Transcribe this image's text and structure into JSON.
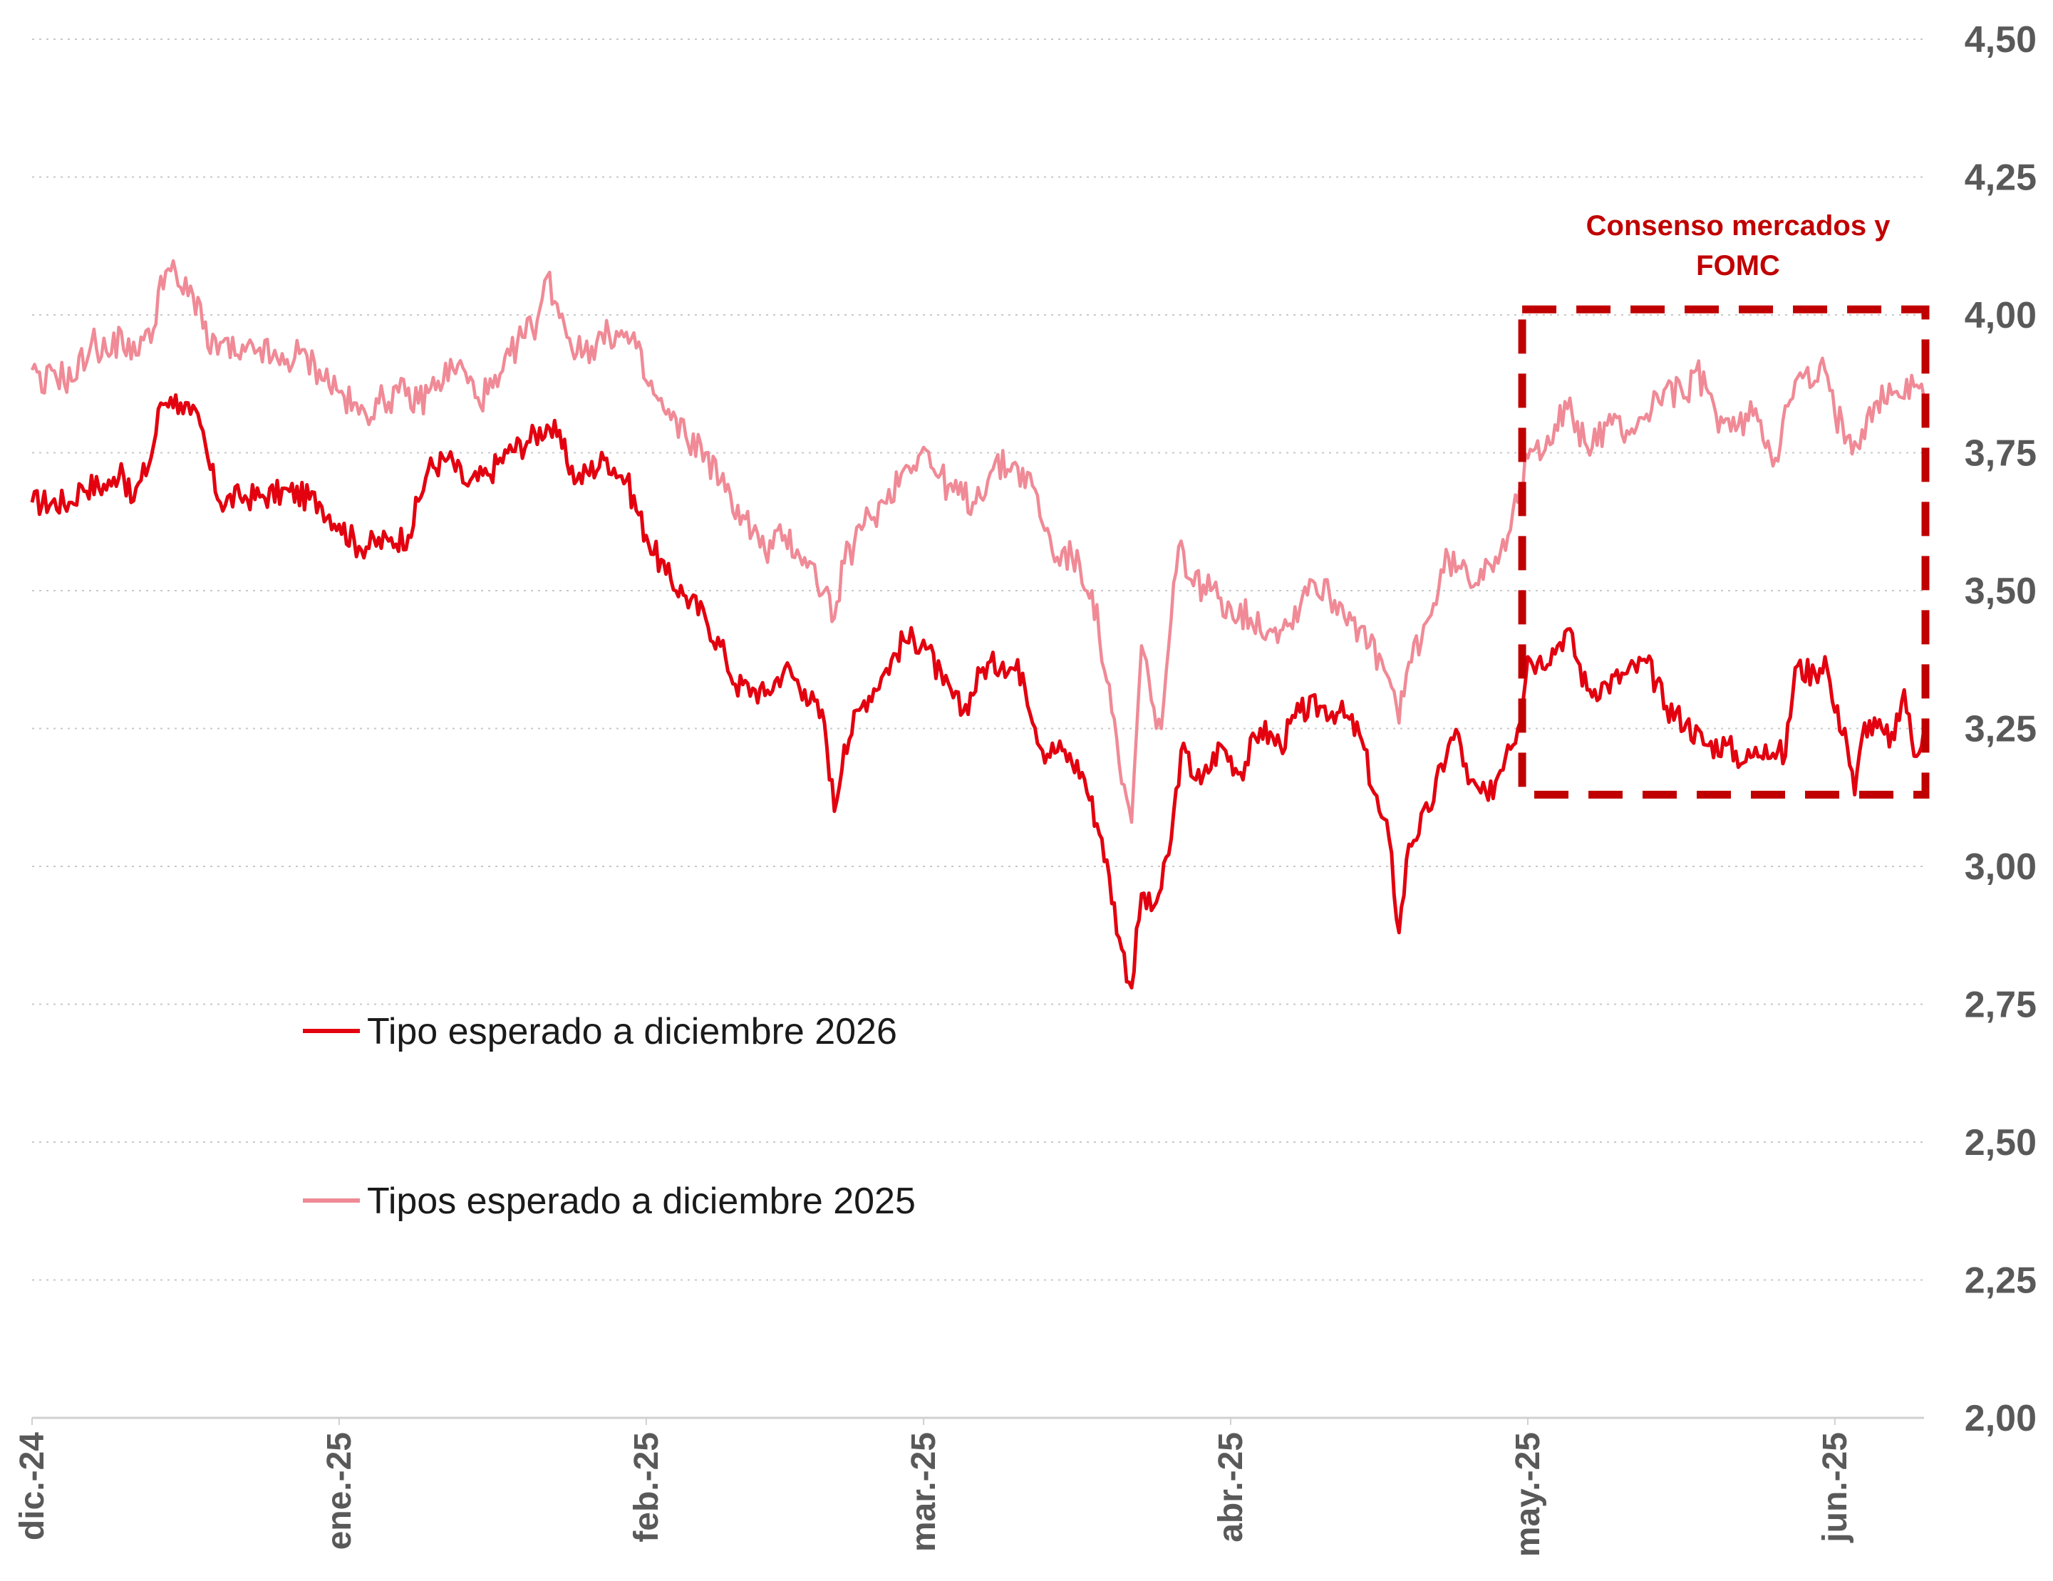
{
  "chart_data": {
    "type": "line",
    "title": "",
    "xlabel": "",
    "ylabel": "",
    "ylim": [
      2.0,
      4.5
    ],
    "yticks": [
      "2,00",
      "2,25",
      "2,50",
      "2,75",
      "3,00",
      "3,25",
      "3,50",
      "3,75",
      "4,00",
      "4,25",
      "4,50"
    ],
    "ytick_values": [
      2.0,
      2.25,
      2.5,
      2.75,
      3.0,
      3.25,
      3.5,
      3.75,
      4.0,
      4.25,
      4.5
    ],
    "y_axis_side": "right",
    "grid": "horizontal dotted",
    "xlim": [
      "2024-12-01",
      "2025-06-10"
    ],
    "xticks": [
      {
        "date": "2024-12-01",
        "label": "dic.-24"
      },
      {
        "date": "2025-01-01",
        "label": "ene.-25"
      },
      {
        "date": "2025-02-01",
        "label": "feb.-25"
      },
      {
        "date": "2025-03-01",
        "label": "mar.-25"
      },
      {
        "date": "2025-04-01",
        "label": "abr.-25"
      },
      {
        "date": "2025-05-01",
        "label": "may.-25"
      },
      {
        "date": "2025-06-01",
        "label": "jun.-25"
      }
    ],
    "legend_position": "lower-left",
    "series": [
      {
        "name": "Tipo esperado a diciembre 2026",
        "color": "#e3000f",
        "points": [
          [
            "2024-12-01",
            3.66
          ],
          [
            "2024-12-05",
            3.66
          ],
          [
            "2024-12-06",
            3.69
          ],
          [
            "2024-12-09",
            3.69
          ],
          [
            "2024-12-10",
            3.73
          ],
          [
            "2024-12-11",
            3.66
          ],
          [
            "2024-12-12",
            3.7
          ],
          [
            "2024-12-13",
            3.74
          ],
          [
            "2024-12-14",
            3.84
          ],
          [
            "2024-12-15",
            3.85
          ],
          [
            "2024-12-16",
            3.84
          ],
          [
            "2024-12-17",
            3.82
          ],
          [
            "2024-12-18",
            3.8
          ],
          [
            "2024-12-19",
            3.72
          ],
          [
            "2024-12-20",
            3.66
          ],
          [
            "2024-12-22",
            3.67
          ],
          [
            "2024-12-24",
            3.67
          ],
          [
            "2024-12-27",
            3.68
          ],
          [
            "2024-12-30",
            3.66
          ],
          [
            "2025-01-01",
            3.62
          ],
          [
            "2025-01-03",
            3.58
          ],
          [
            "2025-01-06",
            3.59
          ],
          [
            "2025-01-08",
            3.6
          ],
          [
            "2025-01-10",
            3.72
          ],
          [
            "2025-01-12",
            3.74
          ],
          [
            "2025-01-14",
            3.69
          ],
          [
            "2025-01-16",
            3.71
          ],
          [
            "2025-01-18",
            3.75
          ],
          [
            "2025-01-20",
            3.77
          ],
          [
            "2025-01-22",
            3.8
          ],
          [
            "2025-01-23",
            3.78
          ],
          [
            "2025-01-25",
            3.7
          ],
          [
            "2025-01-28",
            3.74
          ],
          [
            "2025-01-30",
            3.7
          ],
          [
            "2025-02-01",
            3.6
          ],
          [
            "2025-02-03",
            3.53
          ],
          [
            "2025-02-05",
            3.49
          ],
          [
            "2025-02-07",
            3.45
          ],
          [
            "2025-02-09",
            3.38
          ],
          [
            "2025-02-10",
            3.33
          ],
          [
            "2025-02-12",
            3.32
          ],
          [
            "2025-02-13",
            3.31
          ],
          [
            "2025-02-15",
            3.36
          ],
          [
            "2025-02-17",
            3.32
          ],
          [
            "2025-02-19",
            3.26
          ],
          [
            "2025-02-20",
            3.1
          ],
          [
            "2025-02-21",
            3.22
          ],
          [
            "2025-02-23",
            3.3
          ],
          [
            "2025-02-25",
            3.35
          ],
          [
            "2025-02-27",
            3.41
          ],
          [
            "2025-03-01",
            3.41
          ],
          [
            "2025-03-03",
            3.33
          ],
          [
            "2025-03-05",
            3.28
          ],
          [
            "2025-03-07",
            3.36
          ],
          [
            "2025-03-09",
            3.37
          ],
          [
            "2025-03-11",
            3.35
          ],
          [
            "2025-03-13",
            3.21
          ],
          [
            "2025-03-15",
            3.21
          ],
          [
            "2025-03-17",
            3.17
          ],
          [
            "2025-03-19",
            3.05
          ],
          [
            "2025-03-21",
            2.85
          ],
          [
            "2025-03-22",
            2.78
          ],
          [
            "2025-03-23",
            2.95
          ],
          [
            "2025-03-24",
            2.92
          ],
          [
            "2025-03-25",
            2.96
          ],
          [
            "2025-03-26",
            3.05
          ],
          [
            "2025-03-27",
            3.21
          ],
          [
            "2025-03-29",
            3.15
          ],
          [
            "2025-03-31",
            3.22
          ],
          [
            "2025-04-02",
            3.17
          ],
          [
            "2025-04-04",
            3.25
          ],
          [
            "2025-04-06",
            3.22
          ],
          [
            "2025-04-08",
            3.28
          ],
          [
            "2025-04-10",
            3.29
          ],
          [
            "2025-04-12",
            3.28
          ],
          [
            "2025-04-14",
            3.24
          ],
          [
            "2025-04-16",
            3.1
          ],
          [
            "2025-04-17",
            3.05
          ],
          [
            "2025-04-18",
            2.88
          ],
          [
            "2025-04-19",
            3.04
          ],
          [
            "2025-04-21",
            3.1
          ],
          [
            "2025-04-23",
            3.22
          ],
          [
            "2025-04-24",
            3.24
          ],
          [
            "2025-04-25",
            3.15
          ],
          [
            "2025-04-27",
            3.12
          ],
          [
            "2025-04-29",
            3.22
          ],
          [
            "2025-04-30",
            3.25
          ],
          [
            "2025-05-01",
            3.38
          ],
          [
            "2025-05-02",
            3.37
          ],
          [
            "2025-05-04",
            3.4
          ],
          [
            "2025-05-05",
            3.43
          ],
          [
            "2025-05-07",
            3.32
          ],
          [
            "2025-05-09",
            3.33
          ],
          [
            "2025-05-11",
            3.35
          ],
          [
            "2025-05-13",
            3.37
          ],
          [
            "2025-05-15",
            3.29
          ],
          [
            "2025-05-17",
            3.26
          ],
          [
            "2025-05-19",
            3.22
          ],
          [
            "2025-05-21",
            3.22
          ],
          [
            "2025-05-23",
            3.19
          ],
          [
            "2025-05-25",
            3.22
          ],
          [
            "2025-05-27",
            3.2
          ],
          [
            "2025-05-28",
            3.36
          ],
          [
            "2025-05-30",
            3.35
          ],
          [
            "2025-05-31",
            3.38
          ],
          [
            "2025-06-01",
            3.28
          ],
          [
            "2025-06-02",
            3.25
          ],
          [
            "2025-06-03",
            3.13
          ],
          [
            "2025-06-04",
            3.26
          ],
          [
            "2025-06-06",
            3.24
          ],
          [
            "2025-06-07",
            3.23
          ],
          [
            "2025-06-08",
            3.32
          ],
          [
            "2025-06-09",
            3.2
          ],
          [
            "2025-06-10",
            3.25
          ]
        ]
      },
      {
        "name": "Tipos esperado a diciembre 2025",
        "color": "#f08a96",
        "points": [
          [
            "2024-12-01",
            3.9
          ],
          [
            "2024-12-02",
            3.86
          ],
          [
            "2024-12-03",
            3.9
          ],
          [
            "2024-12-05",
            3.88
          ],
          [
            "2024-12-07",
            3.95
          ],
          [
            "2024-12-09",
            3.93
          ],
          [
            "2024-12-10",
            3.97
          ],
          [
            "2024-12-11",
            3.92
          ],
          [
            "2024-12-12",
            3.96
          ],
          [
            "2024-12-13",
            3.95
          ],
          [
            "2024-12-14",
            4.07
          ],
          [
            "2024-12-15",
            4.08
          ],
          [
            "2024-12-16",
            4.05
          ],
          [
            "2024-12-18",
            4.02
          ],
          [
            "2024-12-19",
            3.93
          ],
          [
            "2024-12-20",
            3.95
          ],
          [
            "2024-12-22",
            3.92
          ],
          [
            "2024-12-24",
            3.94
          ],
          [
            "2024-12-26",
            3.91
          ],
          [
            "2024-12-28",
            3.93
          ],
          [
            "2024-12-30",
            3.9
          ],
          [
            "2025-01-01",
            3.86
          ],
          [
            "2025-01-03",
            3.82
          ],
          [
            "2025-01-05",
            3.84
          ],
          [
            "2025-01-07",
            3.86
          ],
          [
            "2025-01-09",
            3.84
          ],
          [
            "2025-01-11",
            3.88
          ],
          [
            "2025-01-13",
            3.91
          ],
          [
            "2025-01-15",
            3.85
          ],
          [
            "2025-01-17",
            3.87
          ],
          [
            "2025-01-19",
            3.95
          ],
          [
            "2025-01-21",
            3.99
          ],
          [
            "2025-01-22",
            4.07
          ],
          [
            "2025-01-23",
            4.02
          ],
          [
            "2025-01-25",
            3.93
          ],
          [
            "2025-01-27",
            3.95
          ],
          [
            "2025-01-29",
            3.97
          ],
          [
            "2025-01-31",
            3.94
          ],
          [
            "2025-02-01",
            3.88
          ],
          [
            "2025-02-03",
            3.82
          ],
          [
            "2025-02-05",
            3.78
          ],
          [
            "2025-02-07",
            3.75
          ],
          [
            "2025-02-09",
            3.68
          ],
          [
            "2025-02-11",
            3.63
          ],
          [
            "2025-02-13",
            3.57
          ],
          [
            "2025-02-15",
            3.6
          ],
          [
            "2025-02-17",
            3.56
          ],
          [
            "2025-02-19",
            3.5
          ],
          [
            "2025-02-20",
            3.45
          ],
          [
            "2025-02-21",
            3.55
          ],
          [
            "2025-02-23",
            3.62
          ],
          [
            "2025-02-25",
            3.66
          ],
          [
            "2025-02-27",
            3.72
          ],
          [
            "2025-03-01",
            3.76
          ],
          [
            "2025-03-02",
            3.72
          ],
          [
            "2025-03-04",
            3.68
          ],
          [
            "2025-03-06",
            3.66
          ],
          [
            "2025-03-08",
            3.72
          ],
          [
            "2025-03-10",
            3.73
          ],
          [
            "2025-03-12",
            3.69
          ],
          [
            "2025-03-14",
            3.57
          ],
          [
            "2025-03-16",
            3.56
          ],
          [
            "2025-03-18",
            3.5
          ],
          [
            "2025-03-20",
            3.28
          ],
          [
            "2025-03-21",
            3.15
          ],
          [
            "2025-03-22",
            3.08
          ],
          [
            "2025-03-23",
            3.4
          ],
          [
            "2025-03-24",
            3.3
          ],
          [
            "2025-03-25",
            3.25
          ],
          [
            "2025-03-26",
            3.45
          ],
          [
            "2025-03-27",
            3.59
          ],
          [
            "2025-03-28",
            3.52
          ],
          [
            "2025-03-30",
            3.5
          ],
          [
            "2025-04-01",
            3.47
          ],
          [
            "2025-04-03",
            3.45
          ],
          [
            "2025-04-05",
            3.43
          ],
          [
            "2025-04-07",
            3.44
          ],
          [
            "2025-04-09",
            3.52
          ],
          [
            "2025-04-11",
            3.49
          ],
          [
            "2025-04-13",
            3.46
          ],
          [
            "2025-04-15",
            3.4
          ],
          [
            "2025-04-17",
            3.34
          ],
          [
            "2025-04-18",
            3.26
          ],
          [
            "2025-04-19",
            3.37
          ],
          [
            "2025-04-21",
            3.45
          ],
          [
            "2025-04-23",
            3.56
          ],
          [
            "2025-04-25",
            3.52
          ],
          [
            "2025-04-27",
            3.55
          ],
          [
            "2025-04-29",
            3.6
          ],
          [
            "2025-04-30",
            3.66
          ],
          [
            "2025-05-01",
            3.74
          ],
          [
            "2025-05-03",
            3.78
          ],
          [
            "2025-05-05",
            3.83
          ],
          [
            "2025-05-07",
            3.76
          ],
          [
            "2025-05-09",
            3.8
          ],
          [
            "2025-05-11",
            3.79
          ],
          [
            "2025-05-13",
            3.82
          ],
          [
            "2025-05-15",
            3.87
          ],
          [
            "2025-05-17",
            3.85
          ],
          [
            "2025-05-18",
            3.9
          ],
          [
            "2025-05-20",
            3.82
          ],
          [
            "2025-05-22",
            3.79
          ],
          [
            "2025-05-24",
            3.83
          ],
          [
            "2025-05-26",
            3.74
          ],
          [
            "2025-05-28",
            3.88
          ],
          [
            "2025-05-30",
            3.88
          ],
          [
            "2025-05-31",
            3.9
          ],
          [
            "2025-06-01",
            3.82
          ],
          [
            "2025-06-03",
            3.77
          ],
          [
            "2025-06-05",
            3.84
          ],
          [
            "2025-06-07",
            3.86
          ],
          [
            "2025-06-09",
            3.87
          ],
          [
            "2025-06-10",
            3.85
          ]
        ]
      }
    ],
    "annotation": {
      "label": "Consenso mercados y FOMC",
      "label_lines": [
        "Consenso mercados y",
        "FOMC"
      ],
      "color": "#c00000",
      "x_range": [
        "2025-04-30",
        "2025-06-10"
      ],
      "y_range": [
        3.13,
        4.01
      ],
      "style": "dashed box"
    }
  }
}
